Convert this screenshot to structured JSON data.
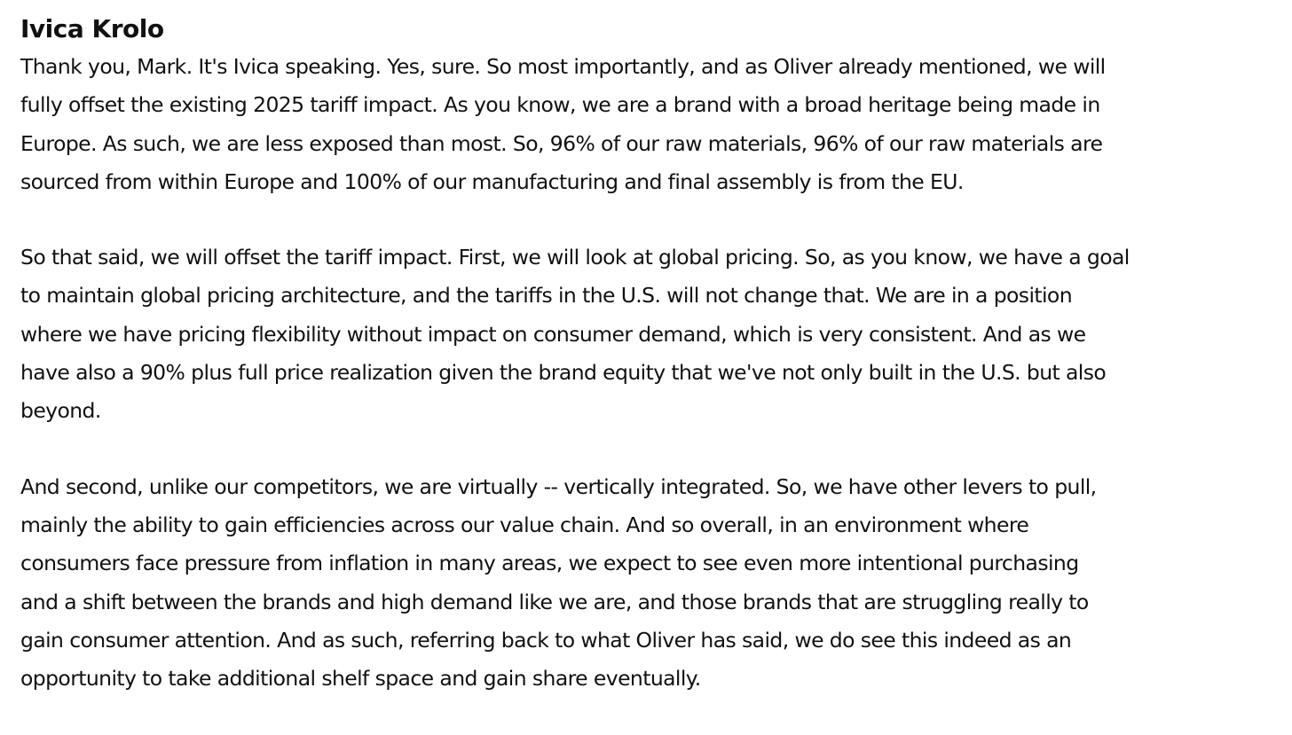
{
  "speaker": "Ivica Krolo",
  "paragraphs": [
    {
      "lines": [
        "Thank you, Mark. It's Ivica speaking. Yes, sure. So most importantly, and as Oliver already mentioned, we will",
        "fully offset the existing 2025 tariff impact. As you know, we are a brand with a broad heritage being made in",
        "Europe. As such, we are less exposed than most. So, 96% of our raw materials, 96% of our raw materials are",
        "sourced from within Europe and 100% of our manufacturing and final assembly is from the EU."
      ]
    },
    {
      "lines": [
        "So that said, we will offset the tariff impact. First, we will look at global pricing. So, as you know, we have a goal",
        "to maintain global pricing architecture, and the tariffs in the U.S. will not change that. We are in a position",
        "where we have pricing flexibility without impact on consumer demand, which is very consistent. And as we",
        "have also a 90% plus full price realization given the brand equity that we've not only built in the U.S. but also",
        "beyond."
      ]
    },
    {
      "lines": [
        "And second, unlike our competitors, we are virtually -- vertically integrated. So, we have other levers to pull,",
        "mainly the ability to gain efficiencies across our value chain. And so overall, in an environment where",
        "consumers face pressure from inflation in many areas, we expect to see even more intentional purchasing",
        "and a shift between the brands and high demand like we are, and those brands that are struggling really to",
        "gain consumer attention. And as such, referring back to what Oliver has said, we do see this indeed as an",
        "opportunity to take additional shelf space and gain share eventually."
      ]
    }
  ]
}
